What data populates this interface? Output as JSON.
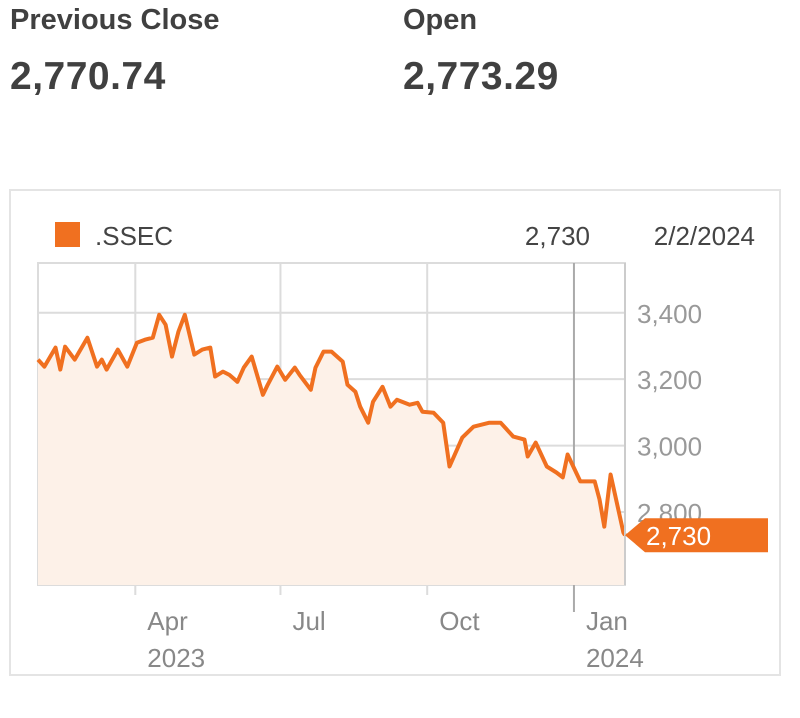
{
  "stats": [
    {
      "label": "Previous Close",
      "value": "2,770.74"
    },
    {
      "label": "Open",
      "value": "2,773.29"
    }
  ],
  "chart_data": {
    "type": "area",
    "legend": {
      "name": ".SSEC",
      "position": "top-left"
    },
    "header_value": "2,730",
    "header_date": "2/2/2024",
    "last_value_label": "2,730",
    "colors": {
      "line": "#f07020",
      "fill": "#fdf1e8",
      "grid": "#dcdcdc",
      "axis_text": "#999999"
    },
    "ylim": [
      2580,
      3550
    ],
    "xlim": [
      "2023-01-30",
      "2024-02-02"
    ],
    "grid": true,
    "y_ticks": [
      {
        "value": 3400,
        "label": "3,400"
      },
      {
        "value": 3200,
        "label": "3,200"
      },
      {
        "value": 3000,
        "label": "3,000"
      },
      {
        "value": 2800,
        "label": "2,800"
      }
    ],
    "x_ticks": [
      {
        "date": "2023-04-01",
        "label": "Apr",
        "sublabel": "2023"
      },
      {
        "date": "2023-07-01",
        "label": "Jul",
        "sublabel": ""
      },
      {
        "date": "2023-10-01",
        "label": "Oct",
        "sublabel": ""
      },
      {
        "date": "2024-01-01",
        "label": "Jan",
        "sublabel": "2024"
      }
    ],
    "series": [
      {
        "points": [
          [
            "2023-01-30",
            3259
          ],
          [
            "2023-02-03",
            3238
          ],
          [
            "2023-02-10",
            3295
          ],
          [
            "2023-02-13",
            3229
          ],
          [
            "2023-02-16",
            3298
          ],
          [
            "2023-02-22",
            3259
          ],
          [
            "2023-03-02",
            3325
          ],
          [
            "2023-03-08",
            3238
          ],
          [
            "2023-03-11",
            3259
          ],
          [
            "2023-03-14",
            3229
          ],
          [
            "2023-03-21",
            3289
          ],
          [
            "2023-03-27",
            3238
          ],
          [
            "2023-04-02",
            3310
          ],
          [
            "2023-04-07",
            3319
          ],
          [
            "2023-04-12",
            3325
          ],
          [
            "2023-04-16",
            3394
          ],
          [
            "2023-04-20",
            3364
          ],
          [
            "2023-04-24",
            3268
          ],
          [
            "2023-04-28",
            3343
          ],
          [
            "2023-05-02",
            3394
          ],
          [
            "2023-05-08",
            3274
          ],
          [
            "2023-05-13",
            3289
          ],
          [
            "2023-05-18",
            3295
          ],
          [
            "2023-05-21",
            3208
          ],
          [
            "2023-05-26",
            3223
          ],
          [
            "2023-05-30",
            3213
          ],
          [
            "2023-06-04",
            3192
          ],
          [
            "2023-06-08",
            3235
          ],
          [
            "2023-06-13",
            3268
          ],
          [
            "2023-06-20",
            3153
          ],
          [
            "2023-06-23",
            3183
          ],
          [
            "2023-06-29",
            3238
          ],
          [
            "2023-07-04",
            3198
          ],
          [
            "2023-07-10",
            3235
          ],
          [
            "2023-07-13",
            3213
          ],
          [
            "2023-07-20",
            3168
          ],
          [
            "2023-07-23",
            3235
          ],
          [
            "2023-07-28",
            3283
          ],
          [
            "2023-08-02",
            3283
          ],
          [
            "2023-08-09",
            3253
          ],
          [
            "2023-08-12",
            3183
          ],
          [
            "2023-08-17",
            3162
          ],
          [
            "2023-08-20",
            3117
          ],
          [
            "2023-08-25",
            3069
          ],
          [
            "2023-08-28",
            3132
          ],
          [
            "2023-09-03",
            3177
          ],
          [
            "2023-09-08",
            3117
          ],
          [
            "2023-09-12",
            3138
          ],
          [
            "2023-09-20",
            3123
          ],
          [
            "2023-09-25",
            3129
          ],
          [
            "2023-09-28",
            3102
          ],
          [
            "2023-10-05",
            3099
          ],
          [
            "2023-10-11",
            3069
          ],
          [
            "2023-10-15",
            2937
          ],
          [
            "2023-10-23",
            3024
          ],
          [
            "2023-10-30",
            3057
          ],
          [
            "2023-11-09",
            3069
          ],
          [
            "2023-11-16",
            3069
          ],
          [
            "2023-11-24",
            3027
          ],
          [
            "2023-12-01",
            3018
          ],
          [
            "2023-12-03",
            2967
          ],
          [
            "2023-12-08",
            3009
          ],
          [
            "2023-12-15",
            2937
          ],
          [
            "2023-12-21",
            2919
          ],
          [
            "2023-12-25",
            2904
          ],
          [
            "2023-12-28",
            2973
          ],
          [
            "2024-01-05",
            2892
          ],
          [
            "2024-01-14",
            2892
          ],
          [
            "2024-01-17",
            2838
          ],
          [
            "2024-01-20",
            2756
          ],
          [
            "2024-01-24",
            2913
          ],
          [
            "2024-02-01",
            2738
          ],
          [
            "2024-02-02",
            2730
          ]
        ]
      }
    ]
  }
}
